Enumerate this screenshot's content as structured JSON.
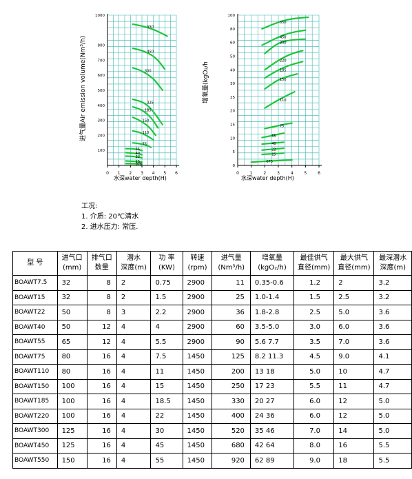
{
  "chart_data": [
    {
      "type": "line",
      "xlabel": "水深water depth(H)",
      "ylabel": "进气量Air emission volume(Nm³/h)",
      "xlim": [
        0,
        6
      ],
      "ylim": [
        0,
        1000
      ],
      "xticks": [
        "0",
        "1",
        "2",
        "3",
        "4",
        "5",
        "6"
      ],
      "yticks": [
        "100",
        "200",
        "300",
        "400",
        "500",
        "600",
        "700",
        "800",
        "1000"
      ],
      "grid": true,
      "series": [
        {
          "name": "550",
          "x": [
            2.2,
            3.2,
            4.2,
            5.2
          ],
          "y": [
            940,
            925,
            900,
            860
          ]
        },
        {
          "name": "450",
          "x": [
            2.2,
            3.2,
            4.2,
            5.0
          ],
          "y": [
            780,
            760,
            720,
            640
          ]
        },
        {
          "name": "300",
          "x": [
            2.2,
            3.0,
            4.0,
            4.8
          ],
          "y": [
            650,
            630,
            580,
            500
          ]
        },
        {
          "name": "225",
          "x": [
            2.2,
            3.2,
            4.0,
            4.8
          ],
          "y": [
            440,
            420,
            360,
            270
          ]
        },
        {
          "name": "185",
          "x": [
            2.2,
            3.0,
            3.8,
            4.4
          ],
          "y": [
            390,
            370,
            320,
            250
          ]
        },
        {
          "name": "150",
          "x": [
            2.2,
            2.8,
            3.6,
            4.2
          ],
          "y": [
            320,
            300,
            260,
            200
          ]
        },
        {
          "name": "110",
          "x": [
            2.2,
            2.8,
            3.4,
            4.0
          ],
          "y": [
            230,
            220,
            200,
            170
          ]
        },
        {
          "name": "75",
          "x": [
            2.2,
            2.8,
            3.4,
            3.8
          ],
          "y": [
            150,
            145,
            135,
            120
          ]
        },
        {
          "name": "55",
          "x": [
            1.6,
            2.2,
            2.8,
            3.0
          ],
          "y": [
            112,
            110,
            105,
            98
          ]
        },
        {
          "name": "40",
          "x": [
            1.6,
            2.2,
            2.8,
            3.0
          ],
          "y": [
            85,
            82,
            78,
            70
          ]
        },
        {
          "name": "22",
          "x": [
            1.6,
            2.2,
            2.8,
            3.0
          ],
          "y": [
            62,
            60,
            55,
            50
          ]
        },
        {
          "name": "15",
          "x": [
            1.6,
            2.2,
            2.8,
            3.0
          ],
          "y": [
            30,
            28,
            25,
            22
          ]
        },
        {
          "name": "075",
          "x": [
            1.6,
            2.2,
            2.8,
            3.0
          ],
          "y": [
            12,
            11,
            10,
            9
          ]
        }
      ]
    },
    {
      "type": "line",
      "xlabel": "水深water depth(H)",
      "ylabel": "增氧量(kgO₂/h",
      "xlim": [
        0,
        6
      ],
      "ylim": [
        0,
        100
      ],
      "xticks": [
        "0",
        "1",
        "2",
        "3",
        "4",
        "5",
        "6"
      ],
      "yticks": [
        "0",
        "5",
        "10",
        "15",
        "20",
        "25",
        "30",
        "40",
        "50",
        "60",
        "80",
        "100"
      ],
      "grid": true,
      "series": [
        {
          "name": "550",
          "x": [
            1.8,
            3.0,
            4.0,
            5.2
          ],
          "y": [
            80,
            90,
            95,
            97
          ]
        },
        {
          "name": "450",
          "x": [
            1.8,
            3.0,
            4.0,
            5.0
          ],
          "y": [
            58,
            68,
            75,
            78
          ]
        },
        {
          "name": "300",
          "x": [
            2.0,
            3.0,
            4.0,
            5.0
          ],
          "y": [
            52,
            60,
            64,
            65
          ]
        },
        {
          "name": "220",
          "x": [
            2.0,
            3.0,
            4.0,
            4.8
          ],
          "y": [
            40,
            47,
            52,
            54
          ]
        },
        {
          "name": "185",
          "x": [
            2.0,
            3.0,
            4.0,
            4.8
          ],
          "y": [
            34,
            40,
            44,
            46
          ]
        },
        {
          "name": "150",
          "x": [
            2.0,
            3.0,
            4.0,
            4.4
          ],
          "y": [
            28,
            33,
            36,
            37
          ]
        },
        {
          "name": "110",
          "x": [
            2.0,
            3.0,
            3.8,
            4.2
          ],
          "y": [
            21,
            24,
            26,
            27
          ]
        },
        {
          "name": "75",
          "x": [
            2.0,
            3.0,
            3.6,
            4.0
          ],
          "y": [
            13.5,
            14.5,
            15.2,
            15.5
          ]
        },
        {
          "name": "55",
          "x": [
            1.8,
            2.4,
            3.0,
            3.4
          ],
          "y": [
            10.2,
            10.8,
            11.4,
            11.8
          ]
        },
        {
          "name": "40",
          "x": [
            1.8,
            2.4,
            3.0,
            3.4
          ],
          "y": [
            7.8,
            8.1,
            8.3,
            8.5
          ]
        },
        {
          "name": "22",
          "x": [
            1.8,
            2.4,
            3.0,
            3.4
          ],
          "y": [
            5.6,
            5.9,
            6.1,
            6.3
          ]
        },
        {
          "name": "15",
          "x": [
            1.8,
            2.4,
            3.0,
            3.4
          ],
          "y": [
            4.0,
            4.2,
            4.4,
            4.5
          ]
        },
        {
          "name": "075",
          "x": [
            1.0,
            2.0,
            3.0,
            4.0
          ],
          "y": [
            1.2,
            1.5,
            1.8,
            2.0
          ]
        }
      ]
    }
  ],
  "conditions": {
    "title": "工况:",
    "line1": "1. 介质: 20℃清水",
    "line2": "2. 进水压力: 常压."
  },
  "table": {
    "headers": [
      "型 号",
      "进气口\n(mm)",
      "排气口\n数量",
      "潜水\n深度(m)",
      "功 率\n(KW)",
      "转速\n(rpm)",
      "进气量\n(Nm³/h)",
      "增氧量\n(kgO₂/h)",
      "最佳供气\n直径(mm)",
      "最大供气\n直径(mm)",
      "最深潜水\n深度(m)"
    ],
    "rows": [
      [
        "BOAWT7.5",
        "32",
        "8",
        "2",
        "0.75",
        "2900",
        "11",
        "0.35-0.6",
        "1.2",
        "2",
        "3.2"
      ],
      [
        "BOAWT15",
        "32",
        "8",
        "2",
        "1.5",
        "2900",
        "25",
        "1.0-1.4",
        "1.5",
        "2.5",
        "3.2"
      ],
      [
        "BOAWT22",
        "50",
        "8",
        "3",
        "2.2",
        "2900",
        "36",
        "1.8-2.8",
        "2.5",
        "5.0",
        "3.6"
      ],
      [
        "BOAWT40",
        "50",
        "12",
        "4",
        "4",
        "2900",
        "60",
        "3.5-5.0",
        "3.0",
        "6.0",
        "3.6"
      ],
      [
        "BOAWT55",
        "65",
        "12",
        "4",
        "5.5",
        "2900",
        "90",
        "5.6 7.7",
        "3.5",
        "7.0",
        "3.6"
      ],
      [
        "BOAWT75",
        "80",
        "16",
        "4",
        "7.5",
        "1450",
        "125",
        "8.2 11.3",
        "4.5",
        "9.0",
        "4.1"
      ],
      [
        "BOAWT110",
        "80",
        "16",
        "4",
        "11",
        "1450",
        "200",
        "13 18",
        "5.0",
        "10",
        "4.7"
      ],
      [
        "BOAWT150",
        "100",
        "16",
        "4",
        "15",
        "1450",
        "250",
        "17 23",
        "5.5",
        "11",
        "4.7"
      ],
      [
        "BOAWT185",
        "100",
        "16",
        "4",
        "18.5",
        "1450",
        "330",
        "20 27",
        "6.0",
        "12",
        "5.0"
      ],
      [
        "BOAWT220",
        "100",
        "16",
        "4",
        "22",
        "1450",
        "400",
        "24 36",
        "6.0",
        "12",
        "5.0"
      ],
      [
        "BOAWT300",
        "125",
        "16",
        "4",
        "30",
        "1450",
        "520",
        "35 46",
        "7.0",
        "14",
        "5.0"
      ],
      [
        "BOAWT450",
        "125",
        "16",
        "4",
        "45",
        "1450",
        "680",
        "42 64",
        "8.0",
        "16",
        "5.5"
      ],
      [
        "BOAWT550",
        "150",
        "16",
        "4",
        "55",
        "1450",
        "920",
        "62 89",
        "9.0",
        "18",
        "5.5"
      ]
    ]
  }
}
